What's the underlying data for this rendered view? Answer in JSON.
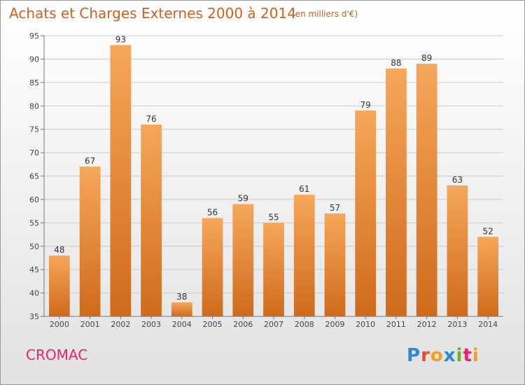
{
  "header": {
    "title": "Achats et Charges Externes 2000 à 2014",
    "subtitle": "(en milliers d'€)"
  },
  "footer": {
    "commune": "CROMAC",
    "logo_text": "Proxiti"
  },
  "colors": {
    "title": "#d1601b",
    "commune": "#e8256e",
    "bar_top": "#f6a75a",
    "bar_bottom": "#cf6a1c"
  },
  "chart_data": {
    "type": "bar",
    "title": "Achats et Charges Externes 2000 à 2014",
    "subtitle": "(en milliers d'€)",
    "categories": [
      "2000",
      "2001",
      "2002",
      "2003",
      "2004",
      "2005",
      "2006",
      "2007",
      "2008",
      "2009",
      "2010",
      "2011",
      "2012",
      "2013",
      "2014"
    ],
    "values": [
      48,
      67,
      93,
      76,
      38,
      56,
      59,
      55,
      61,
      57,
      79,
      88,
      89,
      63,
      52
    ],
    "ylim": [
      35,
      95
    ],
    "yticks": [
      35,
      40,
      45,
      50,
      55,
      60,
      65,
      70,
      75,
      80,
      85,
      90,
      95
    ],
    "xlabel": "",
    "ylabel": "",
    "grid": "horizontal"
  }
}
